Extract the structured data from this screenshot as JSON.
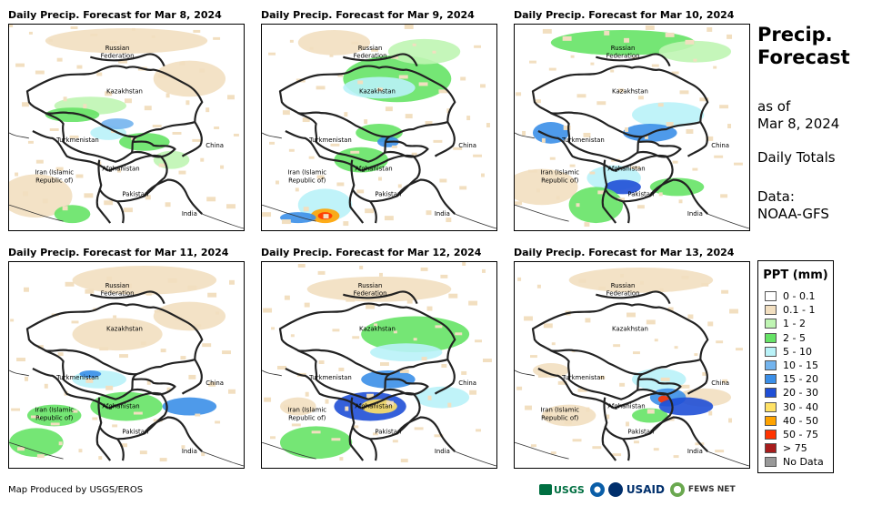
{
  "panels": [
    {
      "title": "Daily Precip. Forecast for Mar 8, 2024"
    },
    {
      "title": "Daily Precip. Forecast for Mar 9, 2024"
    },
    {
      "title": "Daily Precip. Forecast for Mar 10, 2024"
    },
    {
      "title": "Daily Precip. Forecast for Mar 11, 2024"
    },
    {
      "title": "Daily Precip. Forecast for Mar 12, 2024"
    },
    {
      "title": "Daily Precip. Forecast for Mar 13, 2024"
    }
  ],
  "map_labels": {
    "russia_1": "Russian",
    "russia_2": "Federation",
    "kazakhstan": "Kazakhstan",
    "turkmenistan": "Turkmenistan",
    "china": "China",
    "iran_1": "Iran  (Islamic",
    "iran_2": "Republic of)",
    "afghanistan": "Afghanistan",
    "pakistan": "Pakistan",
    "india": "India"
  },
  "side": {
    "title_1": "Precip.",
    "title_2": "Forecast",
    "as_of": "as of",
    "date": "Mar 8, 2024",
    "totals": "Daily Totals",
    "data_label": "Data:",
    "source": "NOAA-GFS"
  },
  "legend": {
    "title": "PPT (mm)",
    "items": [
      {
        "label": "0 - 0.1",
        "color": "#ffffff"
      },
      {
        "label": "0.1 - 1",
        "color": "#f2dfc0"
      },
      {
        "label": "1 - 2",
        "color": "#bff5b3"
      },
      {
        "label": "2 - 5",
        "color": "#66e366"
      },
      {
        "label": "5 - 10",
        "color": "#b9f2f8"
      },
      {
        "label": "10 - 15",
        "color": "#73b4ee"
      },
      {
        "label": "15 - 20",
        "color": "#3b8fe8"
      },
      {
        "label": "20 - 30",
        "color": "#1f4fd6"
      },
      {
        "label": "30 - 40",
        "color": "#ffe266"
      },
      {
        "label": "40 - 50",
        "color": "#ffa300"
      },
      {
        "label": "50 - 75",
        "color": "#ff3300"
      },
      {
        "label": "> 75",
        "color": "#a81c1c"
      },
      {
        "label": "No Data",
        "color": "#999999"
      }
    ]
  },
  "footer": {
    "credit": "Map Produced by USGS/EROS"
  },
  "logos": {
    "usgs": "USGS",
    "usaid": "USAID",
    "fews": "FEWS NET"
  }
}
